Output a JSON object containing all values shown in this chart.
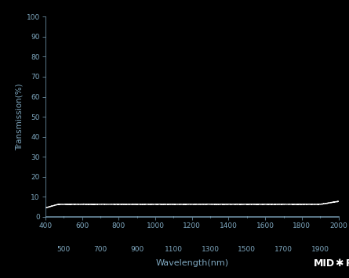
{
  "bg_color": "#000000",
  "text_color": "#7fa8c0",
  "line_color": "#ffffff",
  "xlabel": "Wavelength(nm)",
  "ylabel": "Transmission(%)",
  "xlim": [
    400,
    2000
  ],
  "ylim": [
    0,
    100
  ],
  "xticks_top": [
    400,
    600,
    800,
    1000,
    1200,
    1400,
    1600,
    1800,
    2000
  ],
  "xticks_bottom": [
    500,
    700,
    900,
    1100,
    1300,
    1500,
    1700,
    1900
  ],
  "yticks": [
    0,
    10,
    20,
    30,
    40,
    50,
    60,
    70,
    80,
    90,
    100
  ],
  "transmission_flat": 6.25,
  "line_width": 1.0,
  "figsize": [
    4.45,
    3.55
  ],
  "dpi": 100
}
